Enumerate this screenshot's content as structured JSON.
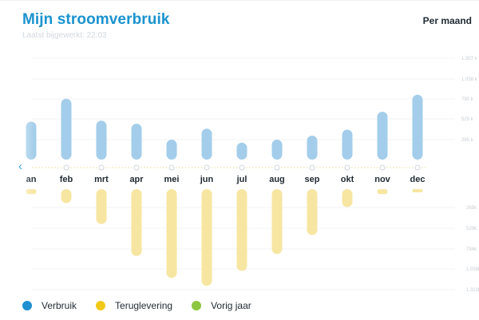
{
  "header": {
    "title": "Mijn stroomverbruik",
    "updated": "Laatst bijgewerkt: 22:03",
    "period": "Per maand"
  },
  "colors": {
    "usage": "#a3cdea",
    "usage_legend": "#1e8fd0",
    "return": "#f7e6a2",
    "return_legend": "#f2c919",
    "previous_year": "#8dc63f",
    "accent": "#1a93cf"
  },
  "icons": {
    "previous": "chevron-left-icon"
  },
  "chart_data": {
    "type": "bar",
    "categories": [
      "jan",
      "feb",
      "mrt",
      "apr",
      "mei",
      "jun",
      "jul",
      "aug",
      "sep",
      "okt",
      "nov",
      "dec"
    ],
    "category_labels_shown": [
      "an",
      "feb",
      "mrt",
      "apr",
      "mei",
      "jun",
      "jul",
      "aug",
      "sep",
      "okt",
      "nov",
      "dec"
    ],
    "series": [
      {
        "name": "Verbruik",
        "values": [
          190,
          305,
          195,
          180,
          100,
          155,
          85,
          100,
          120,
          150,
          240,
          325
        ]
      },
      {
        "name": "Teruglevering",
        "values": [
          25,
          70,
          175,
          335,
          445,
          485,
          410,
          325,
          230,
          90,
          25,
          10
        ]
      }
    ],
    "y_ticks_usage": [
      "1.307 k",
      "1.058 k",
      "790 k",
      "529 k",
      "265 k"
    ],
    "y_ticks_return": [
      "265k",
      "529k",
      "794k",
      "1.058k",
      "1.322k"
    ],
    "grid": true,
    "legend": {
      "placement": "bottom-left",
      "items": [
        {
          "label": "Verbruik"
        },
        {
          "label": "Teruglevering"
        },
        {
          "label": "Vorig jaar"
        }
      ]
    }
  }
}
